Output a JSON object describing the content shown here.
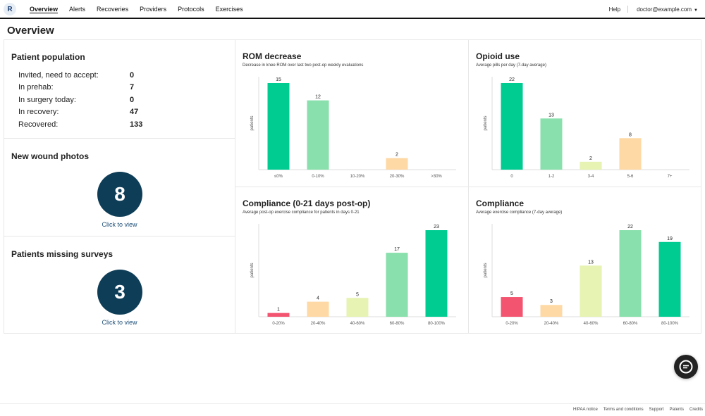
{
  "nav": {
    "logo": "R",
    "links": [
      "Overview",
      "Alerts",
      "Recoveries",
      "Providers",
      "Protocols",
      "Exercises"
    ],
    "help": "Help",
    "user": "doctor@example.com"
  },
  "page_title": "Overview",
  "population": {
    "title": "Patient population",
    "rows": [
      {
        "label": "Invited, need to accept:",
        "value": "0"
      },
      {
        "label": "In prehab:",
        "value": "7"
      },
      {
        "label": "In surgery today:",
        "value": "0"
      },
      {
        "label": "In recovery:",
        "value": "47"
      },
      {
        "label": "Recovered:",
        "value": "133"
      }
    ]
  },
  "wound_photos": {
    "title": "New wound photos",
    "count": "8",
    "link": "Click to view"
  },
  "missing_surveys": {
    "title": "Patients missing surveys",
    "count": "3",
    "link": "Click to view"
  },
  "colors": {
    "dark_green": "#00cc92",
    "mid_green": "#89e0ac",
    "light_green": "#e6f3b2",
    "orange": "#fed9a5",
    "red": "#f3546f"
  },
  "chart_data": [
    {
      "type": "bar",
      "title": "ROM decrease",
      "subtitle": "Decrease in knee ROM over last two post-op weekly evaluations",
      "ylabel": "patients",
      "categories": [
        "≤0%",
        "0-10%",
        "10-20%",
        "20-30%",
        ">30%"
      ],
      "values": [
        15,
        12,
        0,
        2,
        0
      ],
      "colors": [
        "#00cc92",
        "#89e0ac",
        "#e6f3b2",
        "#fed9a5",
        "#f3546f"
      ],
      "ylim": [
        0,
        15
      ]
    },
    {
      "type": "bar",
      "title": "Opioid use",
      "subtitle": "Average pills per day (7-day average)",
      "ylabel": "patients",
      "categories": [
        "0",
        "1-2",
        "3-4",
        "5-6",
        "7+"
      ],
      "values": [
        22,
        13,
        2,
        8,
        0
      ],
      "colors": [
        "#00cc92",
        "#89e0ac",
        "#e6f3b2",
        "#fed9a5",
        "#f3546f"
      ],
      "ylim": [
        0,
        22
      ]
    },
    {
      "type": "bar",
      "title": "Compliance (0-21 days post-op)",
      "subtitle": "Average post-op exercise compliance for patients in days 0-21",
      "ylabel": "patients",
      "categories": [
        "0-20%",
        "20-40%",
        "40-60%",
        "60-80%",
        "80-100%"
      ],
      "values": [
        1,
        4,
        5,
        17,
        23
      ],
      "colors": [
        "#f3546f",
        "#fed9a5",
        "#e6f3b2",
        "#89e0ac",
        "#00cc92"
      ],
      "ylim": [
        0,
        23
      ]
    },
    {
      "type": "bar",
      "title": "Compliance",
      "subtitle": "Average exercise compliance (7-day average)",
      "ylabel": "patients",
      "categories": [
        "0-20%",
        "20-40%",
        "40-60%",
        "60-80%",
        "80-100%"
      ],
      "values": [
        5,
        3,
        13,
        22,
        19
      ],
      "colors": [
        "#f3546f",
        "#fed9a5",
        "#e6f3b2",
        "#89e0ac",
        "#00cc92"
      ],
      "ylim": [
        0,
        22
      ]
    }
  ],
  "footer": [
    "HIPAA notice",
    "Terms and conditions",
    "Support",
    "Patents",
    "Credits"
  ]
}
